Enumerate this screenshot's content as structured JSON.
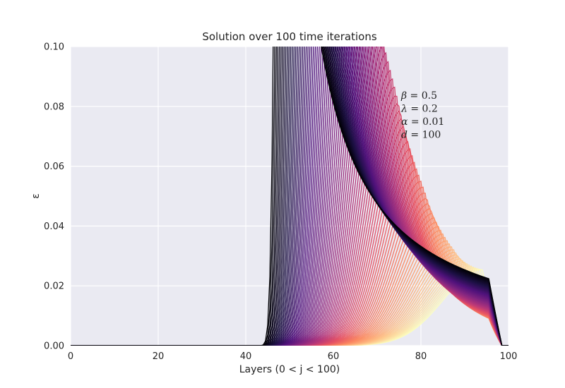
{
  "chart_data": {
    "type": "line",
    "title": "Solution over 100 time iterations",
    "xlabel": "Layers (0 < j < 100)",
    "ylabel": "ε",
    "xlim": [
      0,
      100
    ],
    "ylim": [
      0,
      0.1
    ],
    "x_ticks": [
      0,
      20,
      40,
      60,
      80,
      100
    ],
    "x_tick_labels": [
      "0",
      "20",
      "40",
      "60",
      "80",
      "100"
    ],
    "y_ticks": [
      0.0,
      0.02,
      0.04,
      0.06,
      0.08,
      0.1
    ],
    "y_tick_labels": [
      "0.00",
      "0.02",
      "0.04",
      "0.06",
      "0.08",
      "0.10"
    ],
    "grid": true,
    "legend": "none",
    "colormap": "magma",
    "series_count": 100,
    "background": "#eaeaf2",
    "annotations": [
      {
        "symbol": "β",
        "value": "= 0.5"
      },
      {
        "symbol": "λ",
        "value": "= 0.2"
      },
      {
        "symbol": "α",
        "value": "= 0.01"
      },
      {
        "symbol": "d",
        "value": "= 100"
      }
    ]
  }
}
